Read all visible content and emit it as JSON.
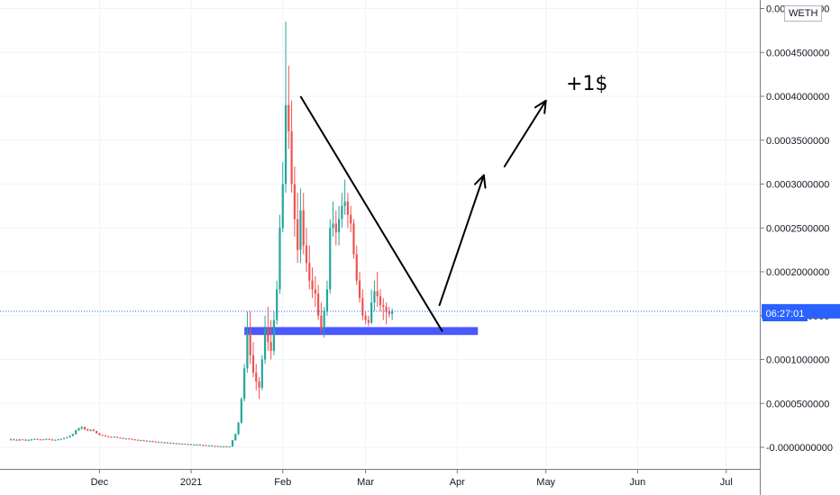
{
  "symbol": "WETH",
  "countdown": "06:27:01",
  "annotation_label": "+1$",
  "colors": {
    "up": "#26a69a",
    "down": "#ef5350",
    "support_band": "#2b3bff",
    "current_price_line": "#2962ff",
    "trendline": "#000000"
  },
  "chart_data": {
    "type": "candlestick",
    "title": "",
    "xlabel": "",
    "ylabel": "",
    "x_ticks": [
      "Dec",
      "2021",
      "Feb",
      "Mar",
      "Apr",
      "May",
      "Jun",
      "Jul"
    ],
    "y_ticks": [
      "-0.0000000000",
      "0.0000500000",
      "0.0001000000",
      "0.0001500000",
      "0.0002000000",
      "0.0002500000",
      "0.0003000000",
      "0.0003500000",
      "0.0004000000",
      "0.0004500000",
      "0.0005000000"
    ],
    "ylim": [
      -2.5e-05,
      0.0005
    ],
    "current_price": 0.000155,
    "support_zone": [
      0.000128,
      0.000137
    ],
    "trendline": {
      "from": [
        "2021-02-07",
        0.0004
      ],
      "to": [
        "2021-03-27",
        0.000132
      ]
    },
    "projection_arrow_points": [
      [
        "2021-03-26",
        0.000162
      ],
      [
        "2021-04-10",
        0.00031
      ],
      [
        "2021-04-17",
        0.00032
      ],
      [
        "2021-05-01",
        0.000395
      ]
    ],
    "candles": {
      "start_date": "2020-11-01",
      "interval": "1d",
      "open": [
        9e-06,
        9e-06,
        8.5e-06,
        8e-06,
        9e-06,
        8.5e-06,
        8e-06,
        8.5e-06,
        9e-06,
        9.5e-06,
        9e-06,
        8.5e-06,
        9e-06,
        9.5e-06,
        9e-06,
        8e-06,
        8.5e-06,
        9e-06,
        9.5e-06,
        1.05e-05,
        1.15e-05,
        1.3e-05,
        1.5e-05,
        1.95e-05,
        2.15e-05,
        2.3e-05,
        2.05e-05,
        1.9e-05,
        2e-05,
        1.85e-05,
        1.6e-05,
        1.4e-05,
        1.35e-05,
        1.25e-05,
        1.2e-05,
        1.15e-05,
        1.2e-05,
        1.1e-05,
        1.05e-05,
        1e-05,
        1e-05,
        9.5e-06,
        9e-06,
        8.5e-06,
        8e-06,
        8e-06,
        7.5e-06,
        7e-06,
        7e-06,
        6.5e-06,
        6e-06,
        6e-06,
        5.5e-06,
        5.5e-06,
        5e-06,
        5e-06,
        4.5e-06,
        4.5e-06,
        4e-06,
        4e-06,
        3.5e-06,
        3.5e-06,
        3e-06,
        3e-06,
        3e-06,
        2.5e-06,
        2.5e-06,
        2e-06,
        2e-06,
        1.5e-06,
        1.5e-06,
        1e-06,
        1e-06,
        1e-06,
        5e-07,
        1e-06,
        8e-06,
        1.5e-05,
        2.8e-05,
        5.5e-05,
        9e-05,
        0.00013,
        0.000105,
        8.5e-05,
        7.5e-05,
        6.8e-05,
        0.0001,
        0.000135,
        0.00012,
        0.00011,
        0.000145,
        0.00018,
        0.00025,
        0.0003,
        0.00039,
        0.00036,
        0.0003,
        0.00026,
        0.000225,
        0.00027,
        0.00023,
        0.00021,
        0.00019,
        0.00018,
        0.000175,
        0.00015,
        0.000135,
        0.000155,
        0.00018,
        0.00025,
        0.000255,
        0.000245,
        0.00026,
        0.000275,
        0.00028,
        0.000265,
        0.000255,
        0.00022,
        0.00019,
        0.00017,
        0.00015,
        0.000145,
        0.000142,
        0.000165,
        0.000178,
        0.000172,
        0.000162,
        0.00016,
        0.000155,
        0.000152
      ],
      "high": [
        1e-05,
        1e-05,
        9.5e-06,
        9.5e-06,
        9.5e-06,
        9.5e-06,
        9e-06,
        9.5e-06,
        1e-05,
        1e-05,
        9.5e-06,
        9.5e-06,
        1e-05,
        1e-05,
        9.5e-06,
        9e-06,
        9.5e-06,
        1e-05,
        1.1e-05,
        1.2e-05,
        1.35e-05,
        1.55e-05,
        2e-05,
        2.25e-05,
        2.4e-05,
        2.4e-05,
        2.15e-05,
        2.05e-05,
        2.1e-05,
        1.9e-05,
        1.65e-05,
        1.45e-05,
        1.4e-05,
        1.3e-05,
        1.25e-05,
        1.25e-05,
        1.25e-05,
        1.15e-05,
        1.1e-05,
        1.05e-05,
        1.05e-05,
        1e-05,
        9.5e-06,
        9e-06,
        8.5e-06,
        8.5e-06,
        8e-06,
        7.5e-06,
        7.5e-06,
        7e-06,
        6.5e-06,
        6.5e-06,
        6e-06,
        6e-06,
        5.5e-06,
        5.5e-06,
        5e-06,
        5e-06,
        4.5e-06,
        4.5e-06,
        4e-06,
        4e-06,
        3.5e-06,
        3.5e-06,
        3.5e-06,
        3e-06,
        3e-06,
        2.5e-06,
        2.5e-06,
        2e-06,
        2e-06,
        1.5e-06,
        1.5e-06,
        1.5e-06,
        1.2e-06,
        8.5e-06,
        1.6e-05,
        2.9e-05,
        5.7e-05,
        9.5e-05,
        0.000155,
        0.000155,
        0.00012,
        9.5e-05,
        8e-05,
        0.000105,
        0.00015,
        0.00016,
        0.000145,
        0.000155,
        0.00019,
        0.000265,
        0.000325,
        0.000485,
        0.000435,
        0.000395,
        0.00032,
        0.00029,
        0.000295,
        0.00029,
        0.00025,
        0.00023,
        0.000205,
        0.000195,
        0.000185,
        0.000165,
        0.00016,
        0.00019,
        0.00026,
        0.00028,
        0.00027,
        0.000275,
        0.00029,
        0.000305,
        0.00029,
        0.000275,
        0.00026,
        0.00023,
        0.0002,
        0.00018,
        0.000155,
        0.00015,
        0.00018,
        0.00019,
        0.0002,
        0.00018,
        0.00017,
        0.000165,
        0.00016,
        0.000158
      ],
      "low": [
        8e-06,
        8e-06,
        7.5e-06,
        7e-06,
        8e-06,
        7.5e-06,
        7e-06,
        7.5e-06,
        8.5e-06,
        8.5e-06,
        8e-06,
        8e-06,
        8.5e-06,
        8.5e-06,
        7.5e-06,
        7.5e-06,
        8e-06,
        8.5e-06,
        9e-06,
        1e-05,
        1.1e-05,
        1.25e-05,
        1.45e-05,
        1.85e-05,
        2e-05,
        1.95e-05,
        1.85e-05,
        1.8e-05,
        1.8e-05,
        1.55e-05,
        1.35e-05,
        1.3e-05,
        1.2e-05,
        1.15e-05,
        1.1e-05,
        1.1e-05,
        1.05e-05,
        1e-05,
        9.5e-06,
        9.5e-06,
        9e-06,
        8.5e-06,
        8e-06,
        7.5e-06,
        7.5e-06,
        7e-06,
        6.5e-06,
        6.5e-06,
        6e-06,
        5.5e-06,
        5.5e-06,
        5e-06,
        5e-06,
        4.5e-06,
        4.5e-06,
        4e-06,
        4e-06,
        3.5e-06,
        3.5e-06,
        3e-06,
        3e-06,
        2.5e-06,
        2.5e-06,
        2.5e-06,
        2e-06,
        2e-06,
        1.5e-06,
        1.5e-06,
        1e-06,
        1e-06,
        5e-07,
        5e-07,
        5e-07,
        0.0,
        0.0,
        5e-07,
        7.5e-06,
        1.4e-05,
        2.7e-05,
        5.2e-05,
        8.5e-05,
        9.5e-05,
        8e-05,
        6.5e-05,
        5.5e-05,
        6.5e-05,
        9.5e-05,
        0.00011,
        0.0001,
        0.000105,
        0.00014,
        0.000175,
        0.000245,
        0.00029,
        0.00034,
        0.00029,
        0.00024,
        0.00021,
        0.00021,
        0.00022,
        0.0002,
        0.00018,
        0.00017,
        0.00016,
        0.000145,
        0.00013,
        0.000125,
        0.00015,
        0.000175,
        0.00024,
        0.00023,
        0.00023,
        0.00025,
        0.000265,
        0.00025,
        0.000245,
        0.000215,
        0.000185,
        0.000165,
        0.000145,
        0.00014,
        0.000138,
        0.00014,
        0.000155,
        0.00016,
        0.000155,
        0.000145,
        0.00014,
        0.000148,
        0.000145
      ],
      "close": [
        9e-06,
        8.5e-06,
        8e-06,
        9e-06,
        8.5e-06,
        8e-06,
        8.5e-06,
        9e-06,
        9.5e-06,
        9e-06,
        8.5e-06,
        9e-06,
        9.5e-06,
        9e-06,
        8e-06,
        8.5e-06,
        9e-06,
        9.5e-06,
        1.05e-05,
        1.15e-05,
        1.3e-05,
        1.5e-05,
        1.95e-05,
        2.15e-05,
        2.3e-05,
        2.05e-05,
        1.9e-05,
        2e-05,
        1.85e-05,
        1.6e-05,
        1.4e-05,
        1.35e-05,
        1.25e-05,
        1.2e-05,
        1.15e-05,
        1.2e-05,
        1.1e-05,
        1.05e-05,
        1e-05,
        1e-05,
        9.5e-06,
        9e-06,
        8.5e-06,
        8e-06,
        8e-06,
        7.5e-06,
        7e-06,
        7e-06,
        6.5e-06,
        6e-06,
        6e-06,
        5.5e-06,
        5.5e-06,
        5e-06,
        5e-06,
        4.5e-06,
        4.5e-06,
        4e-06,
        4e-06,
        3.5e-06,
        3.5e-06,
        3e-06,
        3e-06,
        3e-06,
        2.5e-06,
        2.5e-06,
        2e-06,
        2e-06,
        1.5e-06,
        1.5e-06,
        1e-06,
        1e-06,
        1e-06,
        5e-07,
        1e-06,
        8e-06,
        1.5e-05,
        2.8e-05,
        5.5e-05,
        9e-05,
        0.00013,
        0.000105,
        8.5e-05,
        7.5e-05,
        6.8e-05,
        0.0001,
        0.000135,
        0.00012,
        0.00011,
        0.000145,
        0.00018,
        0.00025,
        0.0003,
        0.00039,
        0.00036,
        0.0003,
        0.00026,
        0.000225,
        0.00027,
        0.00023,
        0.00021,
        0.00019,
        0.00018,
        0.000175,
        0.00015,
        0.000135,
        0.000155,
        0.00018,
        0.00025,
        0.000255,
        0.000245,
        0.00026,
        0.000275,
        0.00028,
        0.000265,
        0.000255,
        0.00022,
        0.00019,
        0.00017,
        0.00015,
        0.000145,
        0.000142,
        0.000165,
        0.000178,
        0.000172,
        0.000162,
        0.00016,
        0.000155,
        0.000152,
        0.000155
      ]
    }
  }
}
